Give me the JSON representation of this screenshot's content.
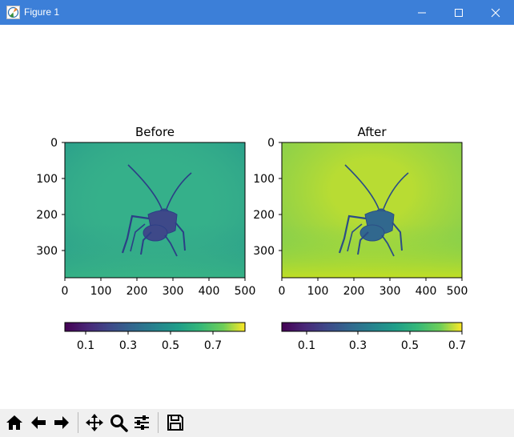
{
  "window": {
    "title": "Figure 1",
    "icon": "matplotlib-figure-icon",
    "controls": [
      "minimize-icon",
      "maximize-icon",
      "close-icon"
    ]
  },
  "panels": [
    {
      "id": "before",
      "title": "Before",
      "x_ticks": [
        "0",
        "100",
        "200",
        "300",
        "400",
        "500"
      ],
      "y_ticks": [
        "0",
        "100",
        "200",
        "300"
      ],
      "colorbar_ticks": [
        "0.1",
        "0.3",
        "0.5",
        "0.7"
      ],
      "colormap": "viridis",
      "background_color": "#35b08a"
    },
    {
      "id": "after",
      "title": "After",
      "x_ticks": [
        "0",
        "100",
        "200",
        "300",
        "400",
        "500"
      ],
      "y_ticks": [
        "0",
        "100",
        "200",
        "300"
      ],
      "colorbar_ticks": [
        "0.1",
        "0.3",
        "0.5",
        "0.7"
      ],
      "colormap": "viridis",
      "background_color": "#a6d83a"
    }
  ],
  "toolbar": {
    "buttons": [
      "home-icon",
      "back-icon",
      "forward-icon",
      "pan-icon",
      "zoom-icon",
      "configure-subplots-icon",
      "save-icon"
    ]
  }
}
